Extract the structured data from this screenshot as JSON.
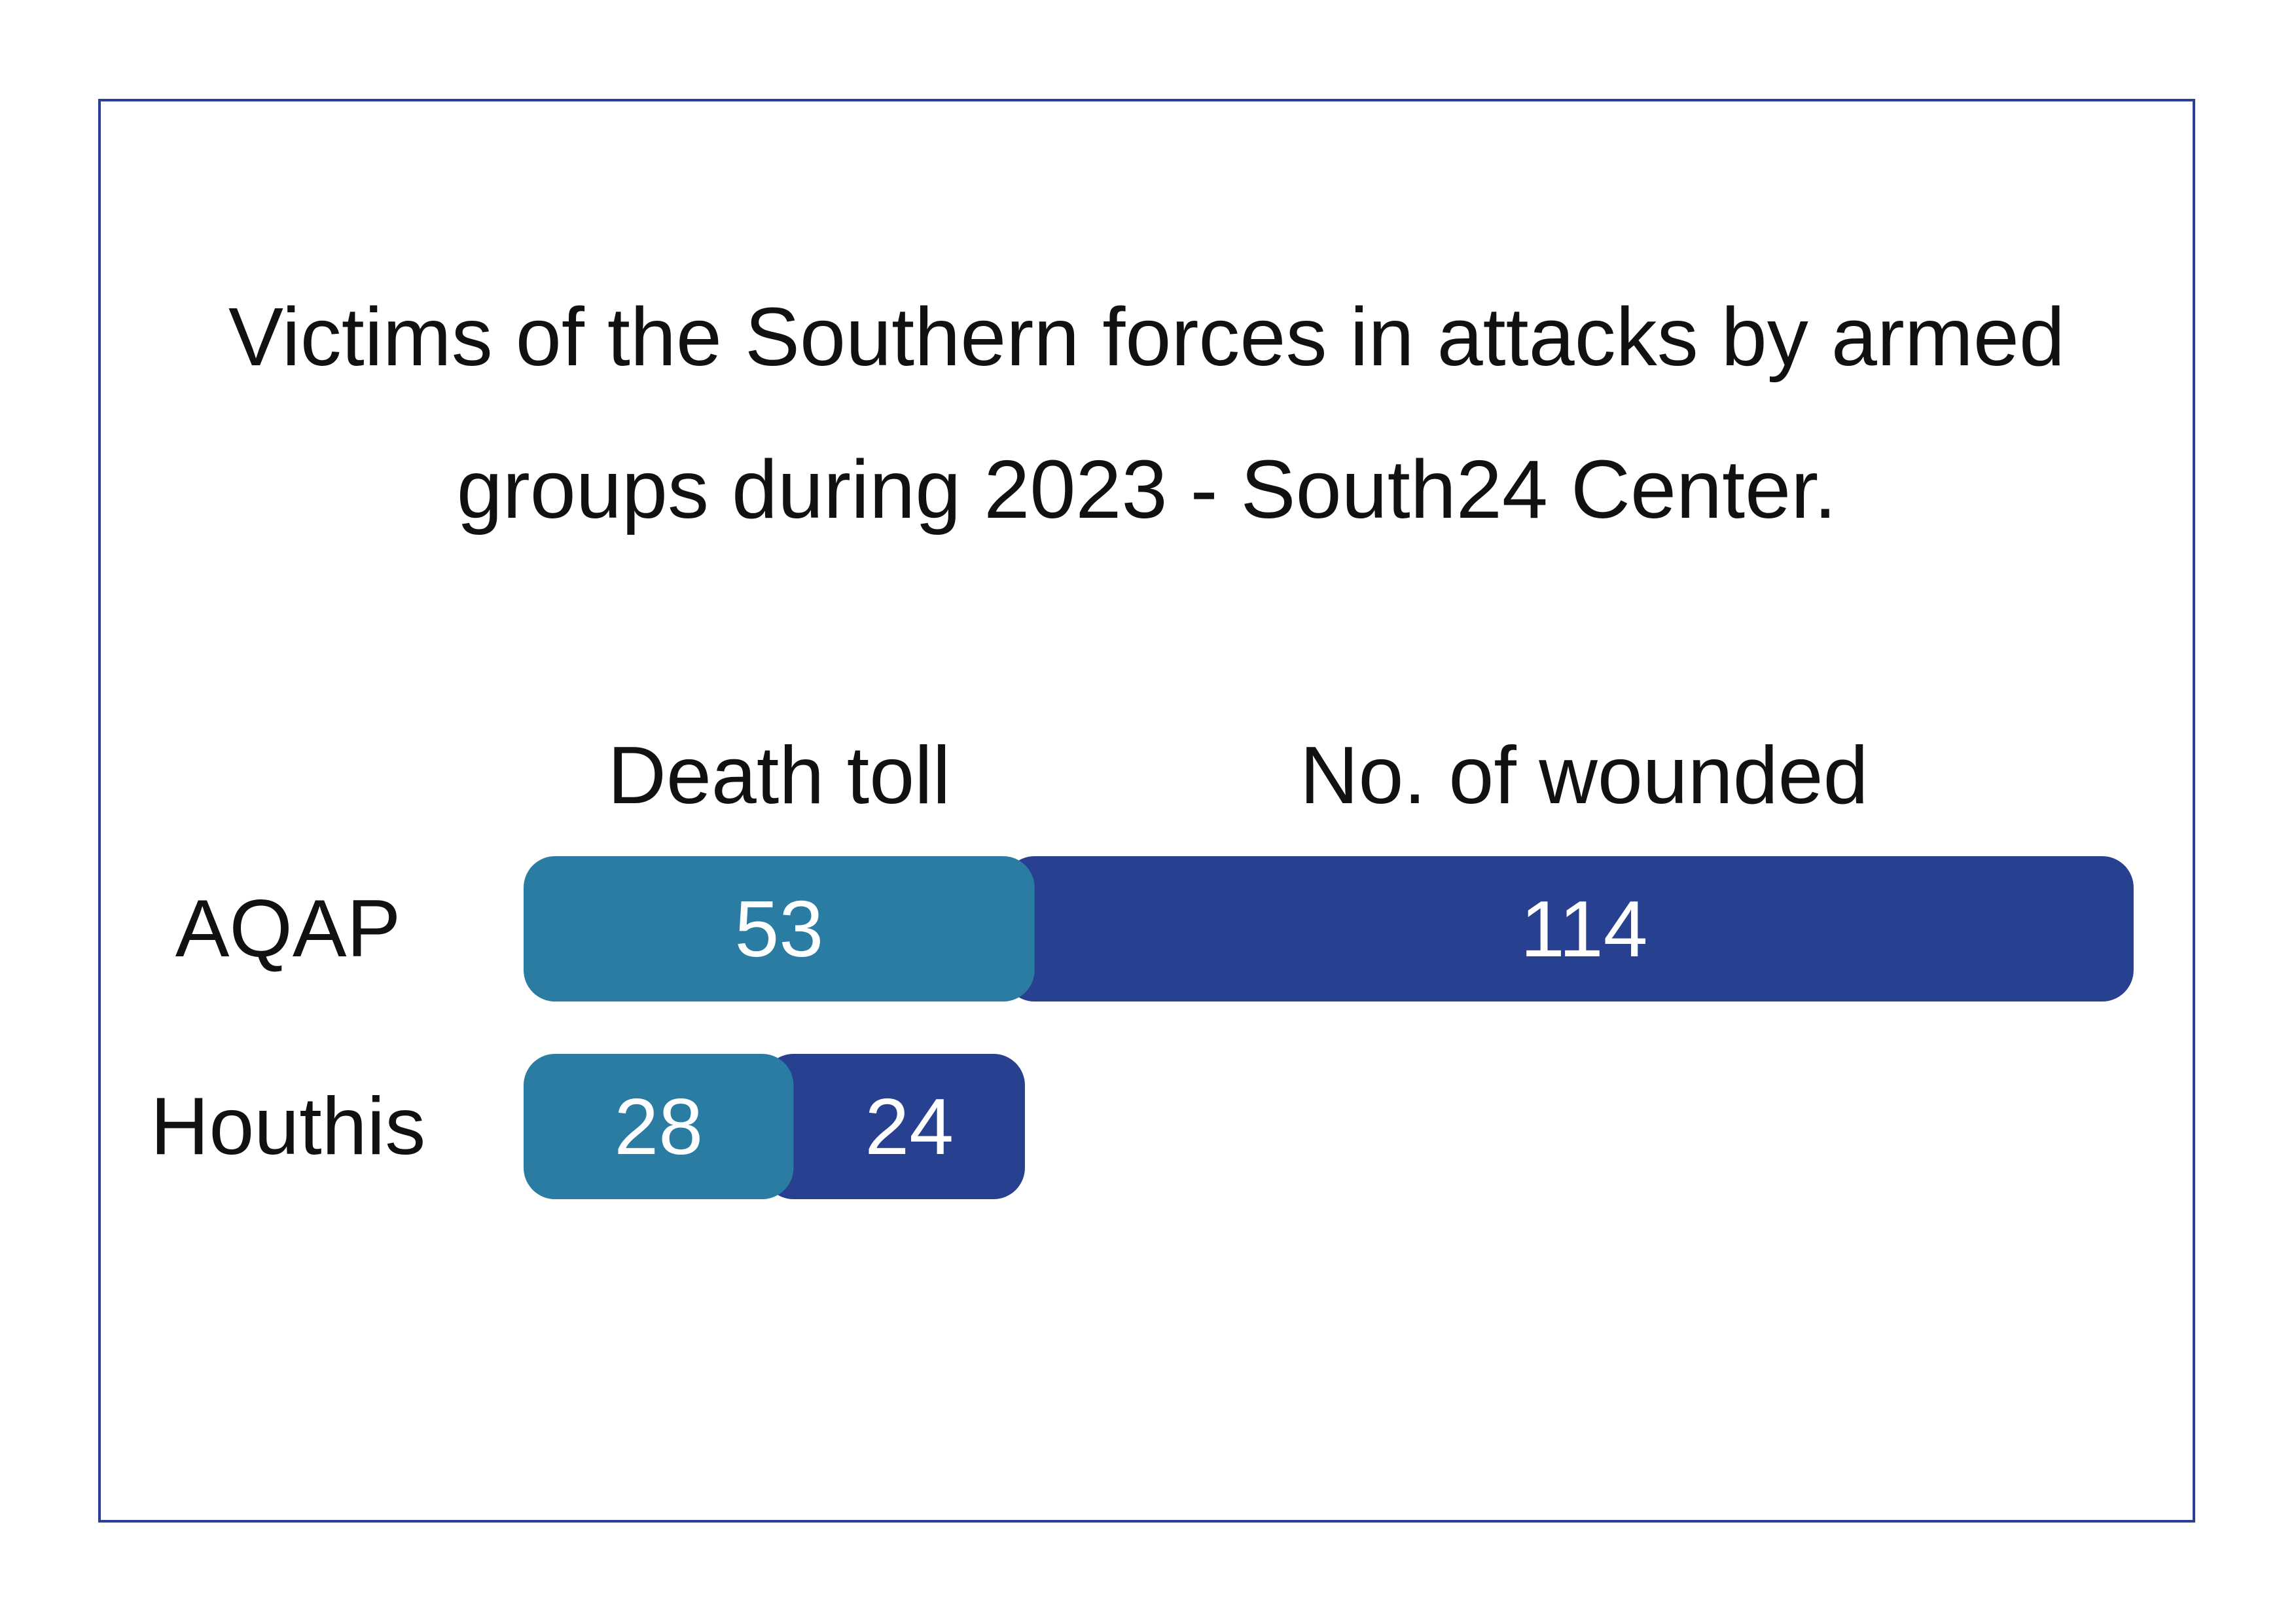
{
  "chart_data": {
    "type": "bar",
    "orientation": "horizontal",
    "stacked": true,
    "title_lines": [
      "Victims of the Southern forces in attacks by armed",
      "groups during 2023 - South24 Center."
    ],
    "categories": [
      "AQAP",
      "Houthis"
    ],
    "series": [
      {
        "name": "Death toll",
        "values": [
          53,
          28
        ],
        "color": "#2a7ca3"
      },
      {
        "name": "No. of wounded",
        "values": [
          114,
          24
        ],
        "color": "#27408f"
      }
    ],
    "legend_position": "top",
    "grid": false,
    "axes_visible": false,
    "data_labels": true,
    "frame_color": "#2b3f96"
  }
}
